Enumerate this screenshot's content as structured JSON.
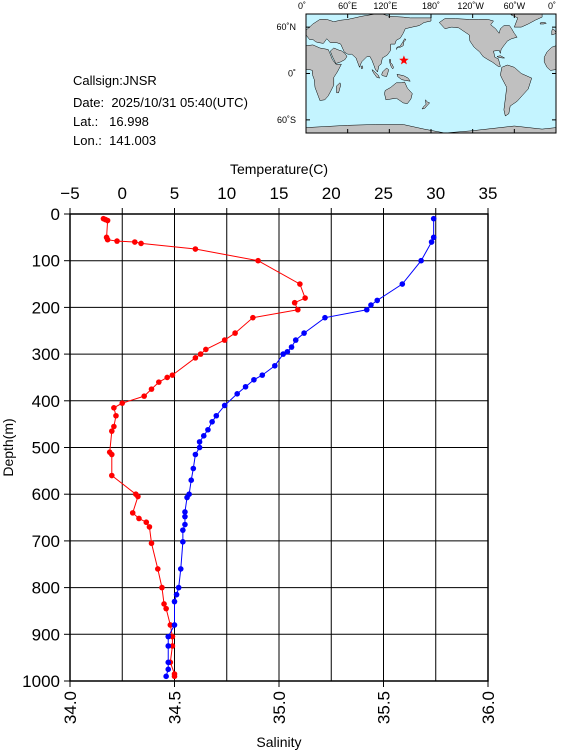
{
  "info": {
    "callsign_label": "Callsign:",
    "callsign": "JNSR",
    "date_label": "Date:",
    "date": "2025/10/31 05:40(UTC)",
    "lat_label": "Lat.:",
    "lat": "16.998",
    "lon_label": "Lon.:",
    "lon": "141.003"
  },
  "map": {
    "top_lon_labels": [
      "0˚",
      "60˚E",
      "120˚E",
      "180˚",
      "120˚W",
      "60˚W",
      "0˚"
    ],
    "lat_labels": [
      "60˚N",
      "0˚",
      "60˚S"
    ],
    "ocean_color": "#c4f4ff",
    "land_color": "#c0c0c0",
    "station_marker_color": "#ff0000",
    "station": {
      "lat": 16.998,
      "lon": 141.003
    }
  },
  "chart_data": {
    "type": "line",
    "xlabel_top": "Temperature(C)",
    "xlabel_bottom": "Salinity",
    "ylabel": "Depth(m)",
    "temperature_axis": {
      "range": [
        -5,
        35
      ],
      "ticks": [
        -5,
        0,
        5,
        10,
        15,
        20,
        25,
        30,
        35
      ]
    },
    "salinity_axis": {
      "range": [
        34.0,
        36.0
      ],
      "ticks": [
        "34.0",
        "34.5",
        "35.0",
        "35.5",
        "36.0"
      ]
    },
    "depth_axis": {
      "range": [
        0,
        1000
      ],
      "reversed": true,
      "ticks": [
        0,
        100,
        200,
        300,
        400,
        500,
        600,
        700,
        800,
        900,
        1000
      ]
    },
    "grid": true,
    "series": [
      {
        "key": "temperature",
        "color": "#ff0000",
        "points": [
          [
            -1.8,
            10
          ],
          [
            -1.6,
            12
          ],
          [
            -1.4,
            14
          ],
          [
            -1.5,
            50
          ],
          [
            -1.4,
            55
          ],
          [
            -0.5,
            58
          ],
          [
            1.2,
            60
          ],
          [
            1.8,
            63
          ],
          [
            7.0,
            75
          ],
          [
            13.0,
            100
          ],
          [
            17.0,
            150
          ],
          [
            17.5,
            180
          ],
          [
            16.5,
            190
          ],
          [
            16.8,
            205
          ],
          [
            12.5,
            222
          ],
          [
            10.8,
            255
          ],
          [
            9.8,
            270
          ],
          [
            8.0,
            290
          ],
          [
            7.5,
            300
          ],
          [
            7.0,
            308
          ],
          [
            4.8,
            345
          ],
          [
            4.3,
            350
          ],
          [
            3.5,
            360
          ],
          [
            2.8,
            375
          ],
          [
            2.1,
            390
          ],
          [
            0.0,
            405
          ],
          [
            -0.8,
            415
          ],
          [
            -0.6,
            432
          ],
          [
            -0.8,
            455
          ],
          [
            -1.0,
            465
          ],
          [
            -1.2,
            510
          ],
          [
            -1.0,
            515
          ],
          [
            -1.0,
            560
          ],
          [
            1.3,
            600
          ],
          [
            1.5,
            605
          ],
          [
            1.0,
            640
          ],
          [
            1.6,
            652
          ],
          [
            2.3,
            660
          ],
          [
            2.6,
            670
          ],
          [
            2.8,
            705
          ],
          [
            3.4,
            760
          ],
          [
            3.8,
            800
          ],
          [
            4.0,
            835
          ],
          [
            4.2,
            845
          ],
          [
            4.6,
            880
          ],
          [
            4.8,
            905
          ],
          [
            4.8,
            925
          ],
          [
            4.6,
            960
          ],
          [
            5.0,
            985
          ],
          [
            5.0,
            990
          ]
        ]
      },
      {
        "key": "salinity",
        "color": "#0000ff",
        "points": [
          [
            35.74,
            10
          ],
          [
            35.74,
            50
          ],
          [
            35.73,
            60
          ],
          [
            35.68,
            100
          ],
          [
            35.59,
            150
          ],
          [
            35.47,
            185
          ],
          [
            35.44,
            195
          ],
          [
            35.42,
            205
          ],
          [
            35.22,
            222
          ],
          [
            35.12,
            255
          ],
          [
            35.08,
            270
          ],
          [
            35.06,
            285
          ],
          [
            35.04,
            295
          ],
          [
            35.02,
            300
          ],
          [
            34.98,
            325
          ],
          [
            34.92,
            345
          ],
          [
            34.88,
            355
          ],
          [
            34.84,
            370
          ],
          [
            34.8,
            385
          ],
          [
            34.74,
            410
          ],
          [
            34.7,
            432
          ],
          [
            34.68,
            445
          ],
          [
            34.66,
            462
          ],
          [
            34.64,
            475
          ],
          [
            34.62,
            488
          ],
          [
            34.62,
            500
          ],
          [
            34.6,
            515
          ],
          [
            34.59,
            545
          ],
          [
            34.58,
            570
          ],
          [
            34.57,
            600
          ],
          [
            34.56,
            607
          ],
          [
            34.55,
            638
          ],
          [
            34.55,
            648
          ],
          [
            34.55,
            665
          ],
          [
            34.54,
            677
          ],
          [
            34.54,
            702
          ],
          [
            34.53,
            760
          ],
          [
            34.52,
            800
          ],
          [
            34.51,
            815
          ],
          [
            34.5,
            830
          ],
          [
            34.5,
            880
          ],
          [
            34.47,
            905
          ],
          [
            34.47,
            925
          ],
          [
            34.47,
            960
          ],
          [
            34.47,
            975
          ],
          [
            34.46,
            990
          ]
        ]
      }
    ]
  }
}
